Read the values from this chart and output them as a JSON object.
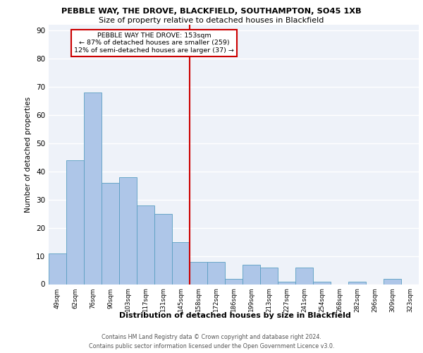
{
  "title1": "PEBBLE WAY, THE DROVE, BLACKFIELD, SOUTHAMPTON, SO45 1XB",
  "title2": "Size of property relative to detached houses in Blackfield",
  "xlabel": "Distribution of detached houses by size in Blackfield",
  "ylabel": "Number of detached properties",
  "categories": [
    "49sqm",
    "62sqm",
    "76sqm",
    "90sqm",
    "103sqm",
    "117sqm",
    "131sqm",
    "145sqm",
    "158sqm",
    "172sqm",
    "186sqm",
    "199sqm",
    "213sqm",
    "227sqm",
    "241sqm",
    "254sqm",
    "268sqm",
    "282sqm",
    "296sqm",
    "309sqm",
    "323sqm"
  ],
  "values": [
    11,
    44,
    68,
    36,
    38,
    28,
    25,
    15,
    8,
    8,
    2,
    7,
    6,
    1,
    6,
    1,
    0,
    1,
    0,
    2,
    0
  ],
  "bar_color": "#aec6e8",
  "bar_edge_color": "#5a9fc2",
  "background_color": "#eef2f9",
  "grid_color": "#ffffff",
  "vline_color": "#cc0000",
  "annotation_text": "PEBBLE WAY THE DROVE: 153sqm\n← 87% of detached houses are smaller (259)\n12% of semi-detached houses are larger (37) →",
  "annotation_box_color": "#ffffff",
  "annotation_box_edge_color": "#cc0000",
  "footer1": "Contains HM Land Registry data © Crown copyright and database right 2024.",
  "footer2": "Contains public sector information licensed under the Open Government Licence v3.0.",
  "ylim": [
    0,
    92
  ],
  "yticks": [
    0,
    10,
    20,
    30,
    40,
    50,
    60,
    70,
    80,
    90
  ]
}
